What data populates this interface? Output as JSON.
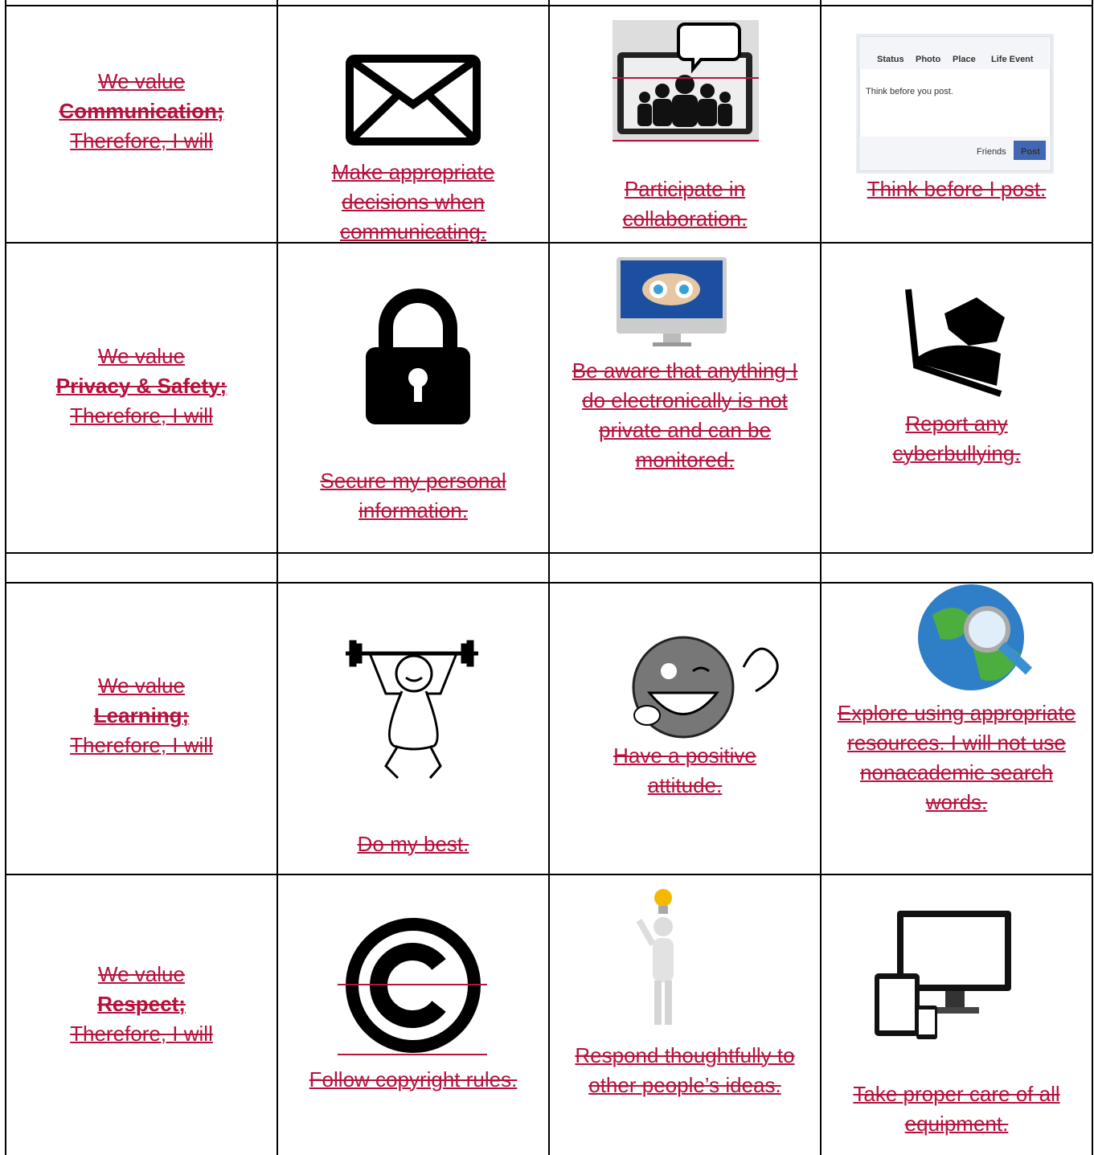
{
  "rows": [
    {
      "intro": "We value",
      "value": "Communication;",
      "outro": "Therefore, I will",
      "actions": [
        "Make appropriate decisions when communicating.",
        "Participate in collaboration.",
        "Think before I post."
      ]
    },
    {
      "intro": "We value",
      "value": "Privacy & Safety;",
      "outro": "Therefore, I will",
      "actions": [
        "Secure my personal information.",
        "Be aware that anything I do electronically is not private and can be monitored.",
        "Report any cyberbullying."
      ]
    },
    {
      "intro": "We value",
      "value": "Learning;",
      "outro": "Therefore, I will",
      "actions": [
        "Do my best.",
        "Have a positive attitude.",
        "Explore using appropriate resources. I will not use nonacademic search words."
      ]
    },
    {
      "intro": "We value",
      "value": "Respect;",
      "outro": "Therefore, I will",
      "actions": [
        "Follow copyright rules.",
        "Respond thoughtfully to other people’s ideas.",
        "Take proper care of all equipment."
      ]
    }
  ],
  "facebook_box": {
    "tabs": [
      "Status",
      "Photo",
      "Place",
      "Life Event"
    ],
    "prompt": "Think before you post.",
    "audience": "Friends",
    "button": "Post"
  }
}
